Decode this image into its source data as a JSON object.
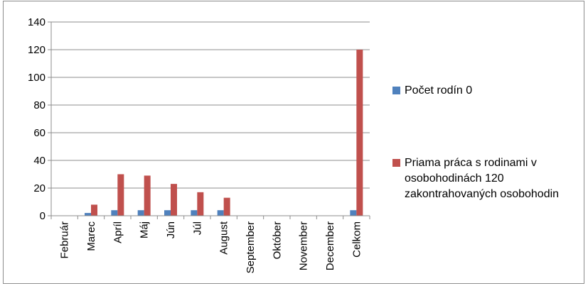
{
  "chart_data": {
    "type": "bar",
    "title": "",
    "xlabel": "",
    "ylabel": "",
    "ylim": [
      0,
      140
    ],
    "yticks": [
      0,
      20,
      40,
      60,
      80,
      100,
      120,
      140
    ],
    "grid": true,
    "legend_position": "right",
    "categories": [
      "Február",
      "Marec",
      "Apríl",
      "Máj",
      "Jún",
      "Júl",
      "August",
      "September",
      "Október",
      "November",
      "December",
      "Celkom"
    ],
    "series": [
      {
        "name": "Počet rodín 0",
        "color": "#4f81bd",
        "values": [
          0,
          2,
          4,
          4,
          4,
          4,
          4,
          0,
          0,
          0,
          0,
          4
        ]
      },
      {
        "name": "Priama práca s rodinami v osobohodinách 120 zakontrahovaných osobohodin",
        "color": "#c0504d",
        "values": [
          0,
          8,
          30,
          29,
          23,
          17,
          13,
          0,
          0,
          0,
          0,
          120
        ]
      }
    ]
  }
}
